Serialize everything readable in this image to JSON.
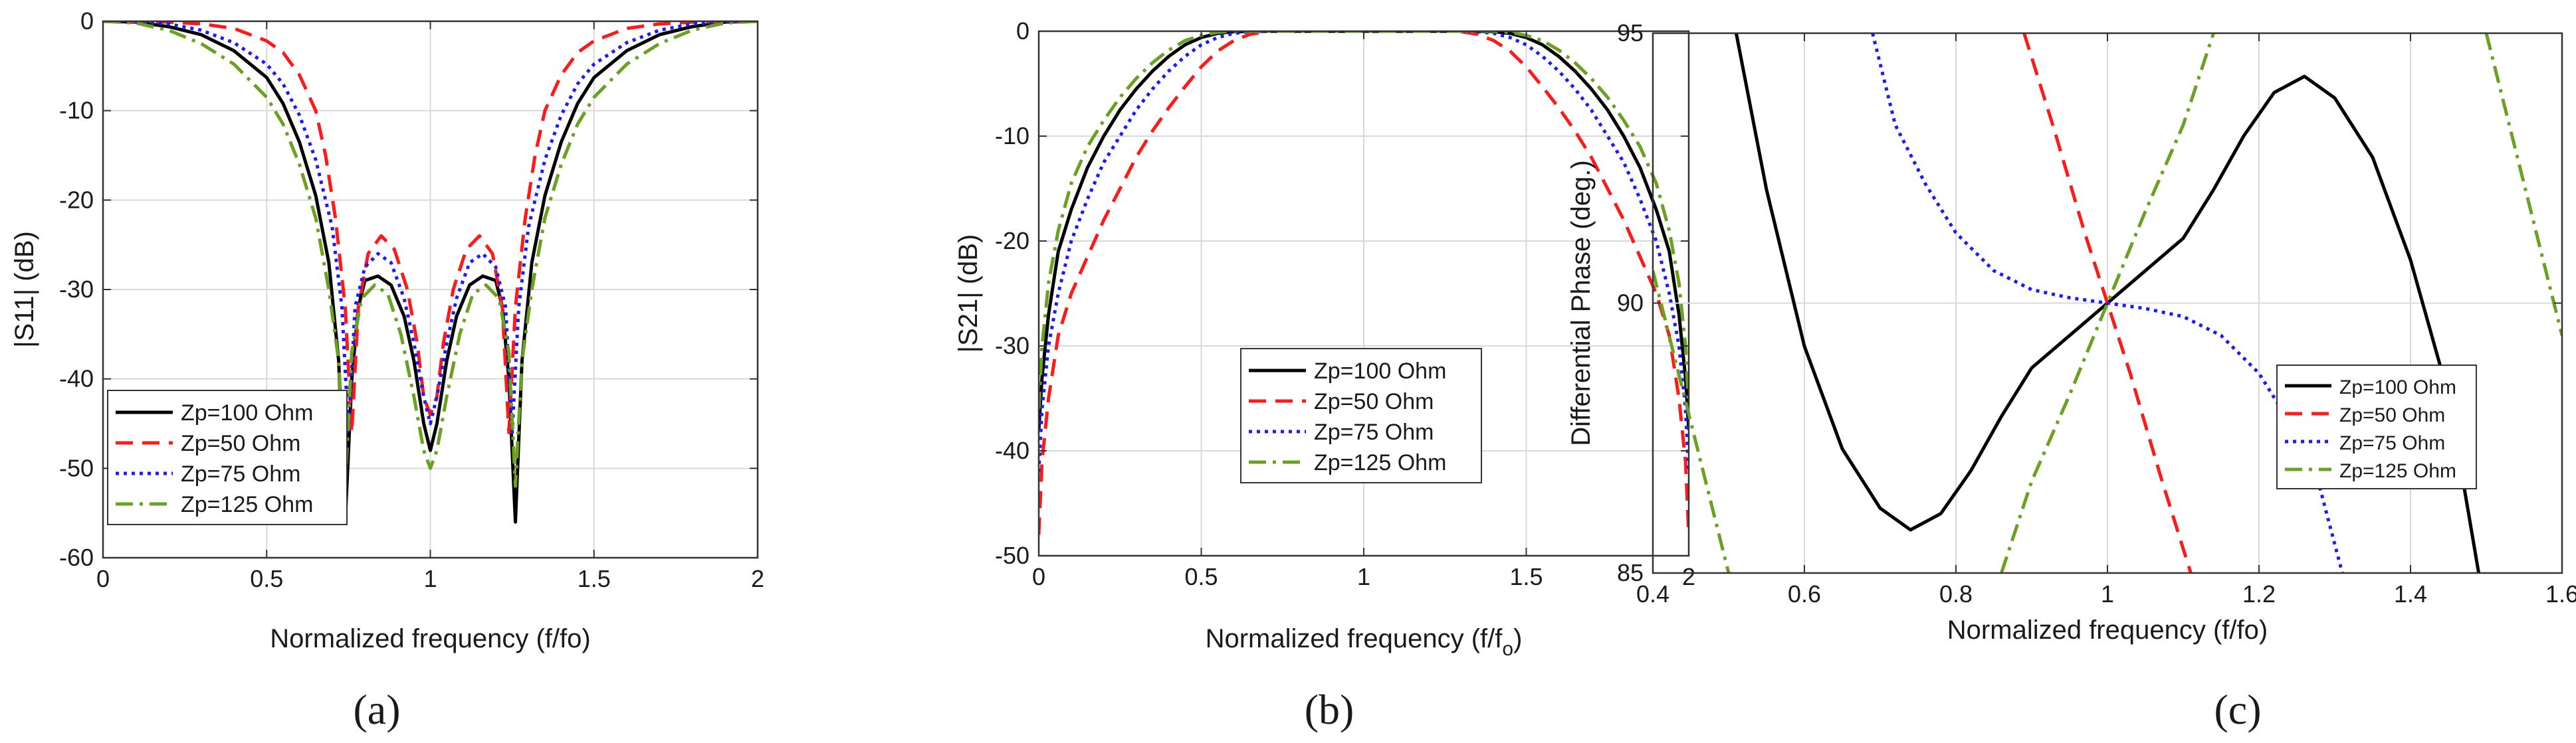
{
  "colors": {
    "Zp=100 Ohm": "#000000",
    "Zp=50 Ohm": "#ff1a1a",
    "Zp=75 Ohm": "#1a1aff",
    "Zp=125 Ohm": "#6aa121",
    "grid": "#d9d9d9",
    "axes": "#333333"
  },
  "panel_labels": {
    "a": "(a)",
    "b": "(b)",
    "c": "(c)"
  },
  "chart_data": [
    {
      "id": "a",
      "type": "line",
      "xlabel": "Normalized frequency (f/fo)",
      "ylabel": "|S11| (dB)",
      "xlim": [
        0,
        2
      ],
      "ylim": [
        -60,
        0
      ],
      "xticks": [
        0,
        0.5,
        1,
        1.5,
        2
      ],
      "xtick_labels": [
        "0",
        "0.5",
        "1",
        "1.5",
        "2"
      ],
      "yticks": [
        -60,
        -50,
        -40,
        -30,
        -20,
        -10,
        0
      ],
      "ytick_labels": [
        "-60",
        "-50",
        "-40",
        "-30",
        "-20",
        "-10",
        "0"
      ],
      "grid": true,
      "legend_position": "lower-left",
      "series": [
        {
          "name": "Zp=100 Ohm",
          "style": "solid",
          "x": [
            0,
            0.1,
            0.2,
            0.3,
            0.4,
            0.5,
            0.55,
            0.6,
            0.65,
            0.69,
            0.72,
            0.74,
            0.76,
            0.78,
            0.8,
            0.84,
            0.88,
            0.92,
            0.95,
            0.98,
            1.0,
            1.02,
            1.05,
            1.08,
            1.12,
            1.16,
            1.2,
            1.22,
            1.24,
            1.26,
            1.28,
            1.31,
            1.35,
            1.4,
            1.45,
            1.5,
            1.6,
            1.7,
            1.8,
            1.9,
            2.0
          ],
          "y": [
            0,
            -0.1,
            -0.6,
            -1.5,
            -3.3,
            -6.3,
            -9.2,
            -13.5,
            -19.5,
            -27,
            -38,
            -56,
            -40,
            -32,
            -29,
            -28.5,
            -29.5,
            -33,
            -38,
            -45,
            -48,
            -45,
            -38,
            -33,
            -29.5,
            -28.5,
            -29,
            -32,
            -40,
            -56,
            -38,
            -27,
            -19.5,
            -13.5,
            -9.2,
            -6.3,
            -3.3,
            -1.5,
            -0.6,
            -0.1,
            0
          ]
        },
        {
          "name": "Zp=50 Ohm",
          "style": "dash",
          "x": [
            0,
            0.2,
            0.3,
            0.4,
            0.5,
            0.55,
            0.6,
            0.65,
            0.68,
            0.71,
            0.74,
            0.76,
            0.78,
            0.81,
            0.85,
            0.89,
            0.93,
            0.96,
            0.98,
            1.0,
            1.02,
            1.04,
            1.07,
            1.11,
            1.15,
            1.19,
            1.22,
            1.24,
            1.26,
            1.29,
            1.32,
            1.35,
            1.4,
            1.45,
            1.5,
            1.6,
            1.7,
            1.8,
            2.0
          ],
          "y": [
            0,
            -0.1,
            -0.3,
            -0.8,
            -2.2,
            -3.5,
            -6,
            -10,
            -15,
            -22,
            -32,
            -46,
            -32,
            -26,
            -24,
            -25.5,
            -30,
            -36,
            -42,
            -44,
            -42,
            -36,
            -30,
            -25.5,
            -24,
            -26,
            -32,
            -46,
            -32,
            -22,
            -15,
            -10,
            -6,
            -3.5,
            -2.2,
            -0.8,
            -0.3,
            -0.1,
            0
          ]
        },
        {
          "name": "Zp=75 Ohm",
          "style": "dot",
          "x": [
            0,
            0.1,
            0.2,
            0.3,
            0.4,
            0.5,
            0.55,
            0.6,
            0.65,
            0.7,
            0.73,
            0.75,
            0.77,
            0.8,
            0.84,
            0.88,
            0.92,
            0.95,
            0.98,
            1.0,
            1.02,
            1.05,
            1.08,
            1.12,
            1.16,
            1.2,
            1.23,
            1.25,
            1.27,
            1.3,
            1.35,
            1.4,
            1.45,
            1.5,
            1.6,
            1.7,
            1.8,
            1.9,
            2.0
          ],
          "y": [
            0,
            -0.05,
            -0.3,
            -1,
            -2.4,
            -4.8,
            -7,
            -10.5,
            -15.5,
            -23,
            -32,
            -46,
            -32,
            -27.5,
            -26,
            -27,
            -31,
            -36,
            -42,
            -45,
            -42,
            -36,
            -31,
            -27,
            -26,
            -27.5,
            -32,
            -46,
            -32,
            -23,
            -15.5,
            -10.5,
            -7,
            -4.8,
            -2.4,
            -1,
            -0.3,
            -0.05,
            0
          ]
        },
        {
          "name": "Zp=125 Ohm",
          "style": "dashdot",
          "x": [
            0,
            0.1,
            0.2,
            0.3,
            0.4,
            0.5,
            0.55,
            0.6,
            0.65,
            0.69,
            0.72,
            0.74,
            0.76,
            0.79,
            0.83,
            0.87,
            0.91,
            0.95,
            0.98,
            1.0,
            1.02,
            1.05,
            1.09,
            1.13,
            1.17,
            1.21,
            1.24,
            1.26,
            1.28,
            1.31,
            1.35,
            1.4,
            1.45,
            1.5,
            1.6,
            1.7,
            1.8,
            1.9,
            2.0
          ],
          "y": [
            0,
            -0.2,
            -1,
            -2.5,
            -4.8,
            -8.5,
            -11.5,
            -16,
            -22,
            -30,
            -38,
            -52,
            -37,
            -31,
            -29.5,
            -30.5,
            -35,
            -42,
            -48,
            -50,
            -48,
            -42,
            -35,
            -30.5,
            -29.5,
            -31,
            -37,
            -52,
            -38,
            -30,
            -22,
            -16,
            -11.5,
            -8.5,
            -4.8,
            -2.5,
            -1,
            -0.2,
            0
          ]
        }
      ]
    },
    {
      "id": "b",
      "type": "line",
      "xlabel": "Normalized frequency (f/f",
      "xlabel_sub": "o",
      "xlabel_end": ")",
      "ylabel": "|S21| (dB)",
      "xlim": [
        0,
        2
      ],
      "ylim": [
        -50,
        0
      ],
      "xticks": [
        0,
        0.5,
        1,
        1.5,
        2
      ],
      "xtick_labels": [
        "0",
        "0.5",
        "1",
        "1.5",
        "2"
      ],
      "yticks": [
        -50,
        -40,
        -30,
        -20,
        -10,
        0
      ],
      "ytick_labels": [
        "-50",
        "-40",
        "-30",
        "-20",
        "-10",
        "0"
      ],
      "grid": true,
      "legend_position": "center",
      "series": [
        {
          "name": "Zp=100 Ohm",
          "style": "solid",
          "x": [
            0,
            0.01,
            0.03,
            0.06,
            0.1,
            0.15,
            0.2,
            0.25,
            0.3,
            0.35,
            0.4,
            0.45,
            0.5,
            0.55,
            0.6,
            0.7,
            0.8,
            1.0,
            1.2,
            1.3,
            1.4,
            1.45,
            1.5,
            1.55,
            1.6,
            1.65,
            1.7,
            1.75,
            1.8,
            1.85,
            1.9,
            1.94,
            1.97,
            1.99,
            2.0
          ],
          "y": [
            -38,
            -33,
            -27,
            -21,
            -17,
            -13,
            -10,
            -7.5,
            -5.5,
            -3.8,
            -2.4,
            -1.3,
            -0.6,
            -0.2,
            -0.05,
            0,
            0,
            0,
            0,
            0,
            -0.05,
            -0.2,
            -0.6,
            -1.3,
            -2.4,
            -3.8,
            -5.5,
            -7.5,
            -10,
            -13,
            -17,
            -21,
            -27,
            -33,
            -38
          ]
        },
        {
          "name": "Zp=50 Ohm",
          "style": "dash",
          "x": [
            0,
            0.01,
            0.03,
            0.06,
            0.1,
            0.15,
            0.2,
            0.25,
            0.3,
            0.35,
            0.4,
            0.45,
            0.5,
            0.55,
            0.6,
            0.65,
            0.7,
            1.0,
            1.3,
            1.35,
            1.4,
            1.45,
            1.5,
            1.55,
            1.6,
            1.65,
            1.7,
            1.75,
            1.8,
            1.85,
            1.9,
            1.94,
            1.97,
            1.99,
            2.0
          ],
          "y": [
            -48,
            -41,
            -35,
            -29,
            -25,
            -21.5,
            -18,
            -15,
            -12,
            -9.5,
            -7.3,
            -5.3,
            -3.4,
            -1.9,
            -0.9,
            -0.3,
            -0.05,
            0,
            -0.05,
            -0.3,
            -0.9,
            -1.9,
            -3.4,
            -5.3,
            -7.3,
            -9.5,
            -12,
            -15,
            -18,
            -21.5,
            -25,
            -29,
            -35,
            -41,
            -48
          ]
        },
        {
          "name": "Zp=75 Ohm",
          "style": "dot",
          "x": [
            0,
            0.01,
            0.03,
            0.06,
            0.1,
            0.15,
            0.2,
            0.25,
            0.3,
            0.35,
            0.4,
            0.45,
            0.5,
            0.55,
            0.6,
            0.65,
            0.7,
            1.0,
            1.3,
            1.35,
            1.4,
            1.45,
            1.5,
            1.55,
            1.6,
            1.65,
            1.7,
            1.75,
            1.8,
            1.85,
            1.9,
            1.94,
            1.97,
            1.99,
            2.0
          ],
          "y": [
            -42,
            -36,
            -30,
            -25,
            -20,
            -16,
            -12.5,
            -10,
            -7.5,
            -5.5,
            -3.8,
            -2.4,
            -1.3,
            -0.6,
            -0.2,
            -0.05,
            0,
            0,
            0,
            -0.05,
            -0.2,
            -0.6,
            -1.3,
            -2.4,
            -3.8,
            -5.5,
            -7.5,
            -10,
            -12.5,
            -16,
            -20,
            -25,
            -30,
            -36,
            -42
          ]
        },
        {
          "name": "Zp=125 Ohm",
          "style": "dashdot",
          "x": [
            0,
            0.01,
            0.03,
            0.06,
            0.1,
            0.15,
            0.2,
            0.25,
            0.3,
            0.35,
            0.4,
            0.45,
            0.5,
            0.55,
            0.6,
            0.7,
            0.8,
            1.0,
            1.2,
            1.3,
            1.4,
            1.45,
            1.5,
            1.55,
            1.6,
            1.65,
            1.7,
            1.75,
            1.8,
            1.85,
            1.9,
            1.94,
            1.97,
            1.99,
            2.0
          ],
          "y": [
            -36,
            -30,
            -24,
            -19,
            -14.5,
            -11,
            -8.5,
            -6.3,
            -4.5,
            -3,
            -1.8,
            -0.9,
            -0.4,
            -0.1,
            0,
            0,
            0,
            0,
            0,
            0,
            0,
            -0.1,
            -0.4,
            -0.9,
            -1.8,
            -3,
            -4.5,
            -6.3,
            -8.5,
            -11,
            -14.5,
            -19,
            -24,
            -30,
            -36
          ]
        }
      ]
    },
    {
      "id": "c",
      "type": "line",
      "xlabel": "Normalized frequency (f/fo)",
      "ylabel": "Differential Phase (deg.)",
      "xlim": [
        0.4,
        1.6
      ],
      "ylim": [
        85,
        95
      ],
      "xticks": [
        0.4,
        0.6,
        0.8,
        1.0,
        1.2,
        1.4,
        1.6
      ],
      "xtick_labels": [
        "0.4",
        "0.6",
        "0.8",
        "1",
        "1.2",
        "1.4",
        "1.6"
      ],
      "yticks": [
        85,
        90,
        95
      ],
      "ytick_labels": [
        "85",
        "90",
        "95"
      ],
      "grid": true,
      "legend_position": "right",
      "series": [
        {
          "name": "Zp=100 Ohm",
          "style": "solid",
          "x": [
            0.51,
            0.55,
            0.6,
            0.65,
            0.7,
            0.74,
            0.78,
            0.82,
            0.86,
            0.9,
            0.95,
            1.0,
            1.05,
            1.1,
            1.14,
            1.18,
            1.22,
            1.26,
            1.3,
            1.35,
            1.4,
            1.45,
            1.49
          ],
          "y": [
            95,
            92.1,
            89.2,
            87.3,
            86.2,
            85.8,
            86.1,
            86.9,
            87.9,
            88.8,
            89.4,
            90,
            90.6,
            91.2,
            92.1,
            93.1,
            93.9,
            94.2,
            93.8,
            92.7,
            90.8,
            88.3,
            85
          ]
        },
        {
          "name": "Zp=50 Ohm",
          "style": "dash",
          "x": [
            0.89,
            0.93,
            0.97,
            1.0,
            1.03,
            1.07,
            1.11
          ],
          "y": [
            95,
            93.2,
            91.3,
            90,
            88.7,
            86.8,
            85
          ]
        },
        {
          "name": "Zp=75 Ohm",
          "style": "dot",
          "x": [
            0.69,
            0.72,
            0.76,
            0.8,
            0.85,
            0.9,
            0.95,
            1.0,
            1.05,
            1.1,
            1.15,
            1.2,
            1.24,
            1.28,
            1.31
          ],
          "y": [
            95,
            93.3,
            92.2,
            91.3,
            90.6,
            90.25,
            90.1,
            90,
            89.9,
            89.75,
            89.4,
            88.7,
            87.8,
            86.6,
            85
          ]
        },
        {
          "name": "Zp=125 Ohm",
          "style": "dashdot",
          "x": [
            0.4,
            0.45,
            0.5,
            0.86,
            0.9,
            0.95,
            1.0,
            1.05,
            1.1,
            1.14,
            1.5,
            1.55,
            1.6
          ],
          "y": [
            90.6,
            87.8,
            85,
            85,
            86.7,
            88.3,
            90,
            91.7,
            93.3,
            95,
            95,
            92.2,
            89.4
          ]
        }
      ]
    }
  ],
  "legend_labels": [
    "Zp=100 Ohm",
    "Zp=50 Ohm",
    "Zp=75 Ohm",
    "Zp=125 Ohm"
  ]
}
